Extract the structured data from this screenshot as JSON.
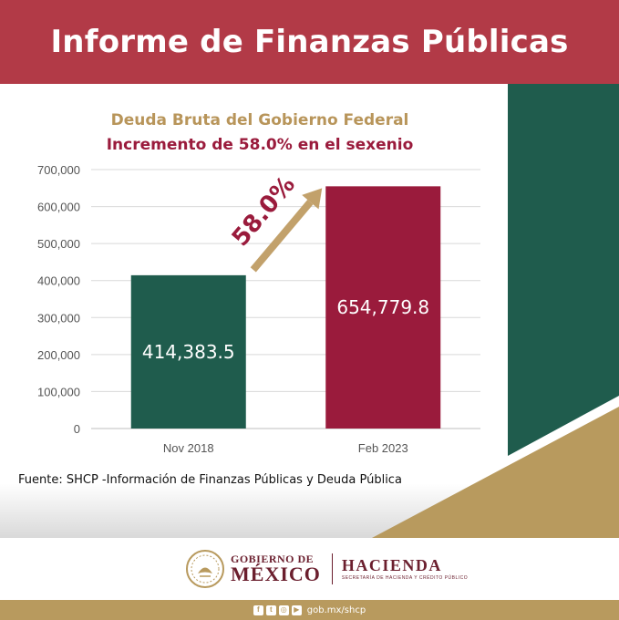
{
  "header": {
    "title": "Informe de Finanzas Públicas"
  },
  "colors": {
    "header_red": "#b23a47",
    "title_gold": "#b8955a",
    "subtitle_maroon": "#9a1b3c",
    "bar_green": "#1f5c4d",
    "bar_maroon": "#9a1b3c",
    "arrow_gold": "#c2a16b",
    "deco_green": "#1f5c4d",
    "deco_gold": "#b89a5e"
  },
  "chart_data": {
    "type": "bar",
    "title": "Deuda Bruta del Gobierno Federal",
    "subtitle": "Incremento de 58.0% en el sexenio",
    "categories": [
      "Nov 2018",
      "Feb 2023"
    ],
    "values": [
      414383.5,
      654779.8
    ],
    "value_labels": [
      "414,383.5",
      "654,779.8"
    ],
    "ylim": [
      0,
      700000
    ],
    "yticks": [
      0,
      100000,
      200000,
      300000,
      400000,
      500000,
      600000,
      700000
    ],
    "ytick_labels": [
      "0",
      "100,000",
      "200,000",
      "300,000",
      "400,000",
      "500,000",
      "600,000",
      "700,000"
    ],
    "grid": true,
    "annotation": "58.0%",
    "xlabel": "",
    "ylabel": ""
  },
  "source": "Fuente: SHCP -Información de Finanzas Públicas y Deuda Pública",
  "footer": {
    "gob_line1": "GOBIERNO DE",
    "gob_line2": "MÉXICO",
    "hacienda": "HACIENDA",
    "hacienda_sub": "SECRETARÍA DE HACIENDA Y CRÉDITO PÚBLICO",
    "url": "gob.mx/shcp",
    "social_icons": [
      "facebook-icon",
      "twitter-icon",
      "instagram-icon",
      "youtube-icon"
    ]
  }
}
